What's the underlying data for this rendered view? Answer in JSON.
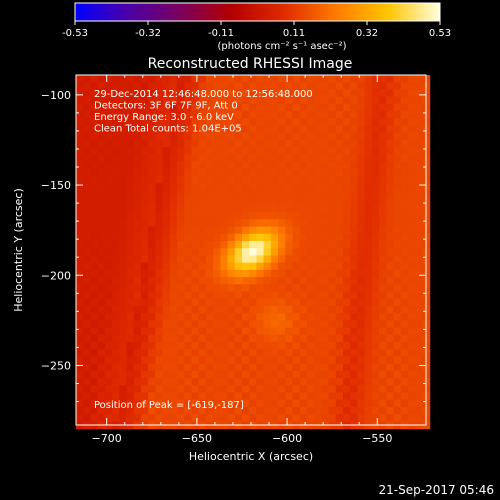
{
  "chart_data": {
    "type": "heatmap",
    "title": "Reconstructed RHESSI Image",
    "xlabel": "Heliocentric X (arcsec)",
    "ylabel": "Heliocentric Y (arcsec)",
    "xlim": [
      -717,
      -523
    ],
    "ylim": [
      -283,
      -89
    ],
    "x_ticks": [
      -700,
      -650,
      -600,
      -550
    ],
    "y_ticks": [
      -100,
      -150,
      -200,
      -250
    ],
    "colorbar": {
      "ticks": [
        "-0.53",
        "-0.32",
        "-0.11",
        "0.11",
        "0.32",
        "0.53"
      ],
      "range": [
        -0.53,
        0.53
      ],
      "unit_label": "(photons cm⁻² s⁻¹ asec⁻²)",
      "colors": [
        "#0000ff",
        "#4a00a8",
        "#7a0060",
        "#b40000",
        "#e02a00",
        "#ff7a00",
        "#ffc400",
        "#ffffe0"
      ]
    },
    "annotations": [
      "29-Dec-2014 12:46:48.000 to 12:56:48.000",
      "Detectors: 3F 6F 7F 9F, Att 0",
      "Energy Range: 3.0 - 6.0 keV",
      "Clean    Total counts: 1.04E+05"
    ],
    "peak_text": "Position of Peak = [-619,-187]",
    "peak_position": [
      -619,
      -187
    ],
    "peak_value": 0.53,
    "background_value": 0.13,
    "ridge_value": 0.03,
    "ridge_x_top": -660,
    "ridge_x_bottom": -695,
    "ridge_width": 18,
    "pixel_size": 4
  },
  "footer_date": "21-Sep-2017 05:46"
}
